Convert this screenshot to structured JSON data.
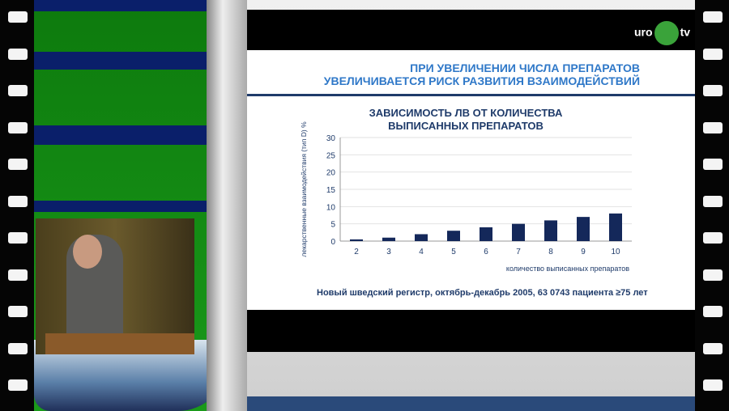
{
  "logo": {
    "text_left": "uro",
    "text_right": "tv"
  },
  "slide": {
    "title_line1": "ПРИ УВЕЛИЧЕНИИ ЧИСЛА ПРЕПАРАТОВ",
    "title_line2": "УВЕЛИЧИВАЕТСЯ РИСК РАЗВИТИЯ ВЗАИМОДЕЙСТВИЙ",
    "footnote": "Новый шведский регистр, октябрь-декабрь 2005, 63 0743 пациента ≥75 лет"
  },
  "colors": {
    "bar": "#14285a",
    "title": "#2f78c8",
    "chart_title": "#1f3b6a"
  },
  "chart_data": {
    "type": "bar",
    "title_line1": "ЗАВИСИМОСТЬ ЛВ ОТ КОЛИЧЕСТВА",
    "title_line2": "ВЫПИСАННЫХ ПРЕПАРАТОВ",
    "xlabel": "количество выписанных препаратов",
    "ylabel": "лекарственные взаимодействия (тип D) %",
    "categories": [
      "2",
      "3",
      "4",
      "5",
      "6",
      "7",
      "8",
      "9",
      "10"
    ],
    "values": [
      0.5,
      1,
      2,
      3,
      4,
      5,
      6,
      7,
      8
    ],
    "ylim": [
      0,
      30
    ],
    "yticks": [
      "0",
      "5",
      "10",
      "15",
      "20",
      "25",
      "30"
    ],
    "grid": true
  }
}
